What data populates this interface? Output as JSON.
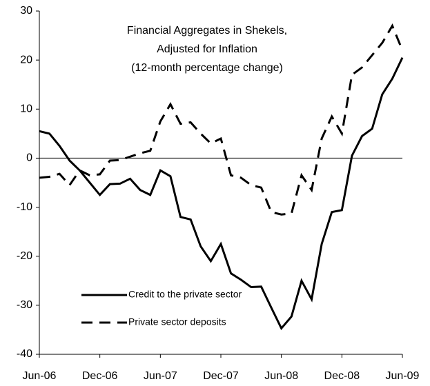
{
  "chart_data": {
    "type": "line",
    "title": [
      "Financial Aggregates in Shekels,",
      "Adjusted for Inflation",
      "(12-month percentage change)"
    ],
    "categories": [
      "Jun-06",
      null,
      null,
      null,
      null,
      null,
      "Dec-06",
      null,
      null,
      null,
      null,
      null,
      "Jun-07",
      null,
      null,
      null,
      null,
      null,
      "Dec-07",
      null,
      null,
      null,
      null,
      null,
      "Jun-08",
      null,
      null,
      null,
      null,
      null,
      "Dec-08",
      null,
      null,
      null,
      null,
      null,
      "Jun-09"
    ],
    "series": [
      {
        "name": "Credit to the private sector",
        "color": "#000000",
        "dash": "solid",
        "values": [
          5.5,
          5,
          2.5,
          -0.5,
          -2.5,
          -5,
          -7.5,
          -5.3,
          -5.2,
          -4.2,
          -6.5,
          -7.5,
          -2.5,
          -3.7,
          -12,
          -12.5,
          -18,
          -21,
          -17.5,
          -23.5,
          -24.8,
          -26.3,
          -26.2,
          -30.5,
          -34.7,
          -32.3,
          -25,
          -28.8,
          -17.5,
          -11,
          -10.6,
          0.5,
          4.5,
          6,
          13,
          16.2,
          20.5
        ]
      },
      {
        "name": "Private sector deposits",
        "color": "#000000",
        "dash": "dashed",
        "values": [
          -4,
          -3.8,
          -3.2,
          -5.5,
          -2.5,
          -3.5,
          -3.3,
          -0.5,
          -0.4,
          0.3,
          1,
          1.5,
          7.5,
          11,
          7,
          7.3,
          5,
          3,
          4,
          -3.5,
          -4,
          -5.5,
          -6,
          -11,
          -11.5,
          -11.3,
          -3.5,
          -6.5,
          4,
          8.5,
          5,
          17,
          18.5,
          21,
          23.5,
          27,
          22
        ]
      }
    ],
    "ylim": [
      -40,
      30
    ],
    "yticks": [
      -40,
      -30,
      -20,
      -10,
      0,
      10,
      20,
      30
    ],
    "grid": false
  }
}
